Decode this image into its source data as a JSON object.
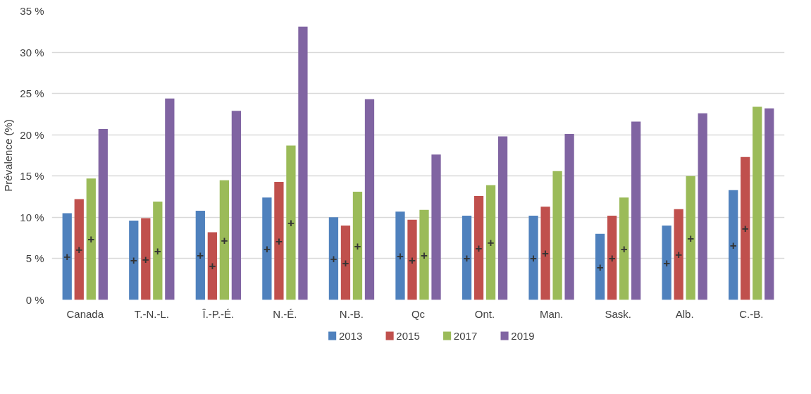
{
  "chart_data": {
    "type": "bar",
    "ylabel": "Prévalence (%)",
    "categories": [
      "Canada",
      "T.-N.-L.",
      "Î.-P.-É.",
      "N.-É.",
      "N.-B.",
      "Qc",
      "Ont.",
      "Man.",
      "Sask.",
      "Alb.",
      "C.-B."
    ],
    "series": [
      {
        "name": "2013",
        "color": "#4f81bd",
        "values": [
          10.5,
          9.6,
          10.8,
          12.4,
          10.0,
          10.7,
          10.2,
          10.2,
          8.0,
          9.0,
          13.3
        ],
        "value_labels": [
          "+",
          "+",
          "+",
          "+",
          "+",
          "+",
          "+",
          "+",
          "+",
          "+",
          "+"
        ]
      },
      {
        "name": "2015",
        "color": "#c0504d",
        "values": [
          12.2,
          9.9,
          8.2,
          14.3,
          9.0,
          9.7,
          12.6,
          11.3,
          10.2,
          11.0,
          17.3
        ],
        "value_labels": [
          "+",
          "+",
          "+",
          "+",
          "+",
          "+",
          "+",
          "+",
          "+",
          "+",
          "+"
        ]
      },
      {
        "name": "2017",
        "color": "#9bbb59",
        "values": [
          14.7,
          11.9,
          14.5,
          18.7,
          13.1,
          10.9,
          13.9,
          15.6,
          12.4,
          15.0,
          23.4
        ],
        "value_labels": [
          "+",
          "+",
          "+",
          "+",
          "+",
          "+",
          "+",
          null,
          "+",
          "+",
          null
        ]
      },
      {
        "name": "2019",
        "color": "#8064a2",
        "values": [
          20.7,
          24.4,
          22.9,
          33.1,
          24.3,
          17.6,
          19.8,
          20.1,
          21.6,
          22.6,
          23.2
        ]
      }
    ],
    "ylim": [
      0,
      35
    ],
    "yticks": [
      {
        "value": 0,
        "label": "0 %"
      },
      {
        "value": 5,
        "label": "5 %"
      },
      {
        "value": 10,
        "label": "10 %"
      },
      {
        "value": 15,
        "label": "15 %"
      },
      {
        "value": 20,
        "label": "20 %"
      },
      {
        "value": 25,
        "label": "25 %"
      },
      {
        "value": 30,
        "label": "30 %"
      },
      {
        "value": 35,
        "label": "35 %"
      }
    ],
    "grid": "y",
    "legend": "bottom"
  }
}
